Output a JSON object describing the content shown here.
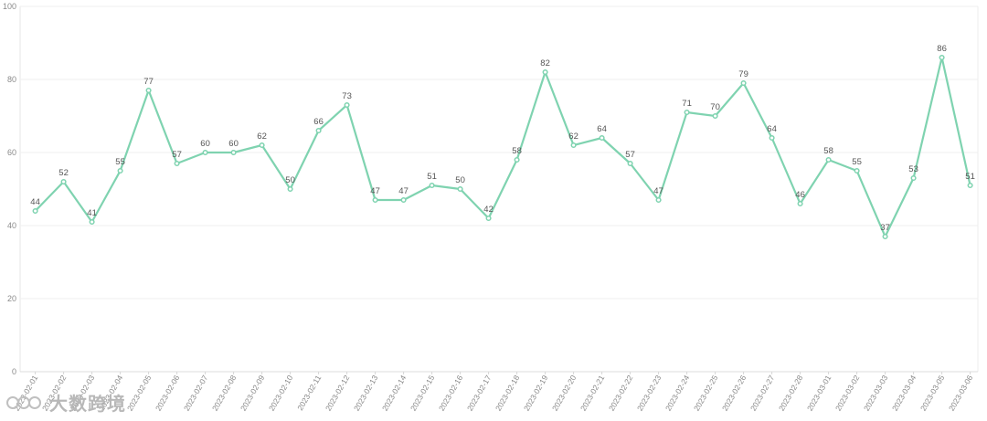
{
  "chart_data": {
    "type": "line",
    "title": "",
    "xlabel": "",
    "ylabel": "",
    "ylim": [
      0,
      100
    ],
    "yticks": [
      0,
      20,
      40,
      60,
      80,
      100
    ],
    "grid": true,
    "line_color": "#7fd3b0",
    "categories": [
      "2023-02-01",
      "2023-02-02",
      "2023-02-03",
      "2023-02-04",
      "2023-02-05",
      "2023-02-06",
      "2023-02-07",
      "2023-02-08",
      "2023-02-09",
      "2023-02-10",
      "2023-02-11",
      "2023-02-12",
      "2023-02-13",
      "2023-02-14",
      "2023-02-15",
      "2023-02-16",
      "2023-02-17",
      "2023-02-18",
      "2023-02-19",
      "2023-02-20",
      "2023-02-21",
      "2023-02-22",
      "2023-02-23",
      "2023-02-24",
      "2023-02-25",
      "2023-02-26",
      "2023-02-27",
      "2023-02-28",
      "2023-03-01",
      "2023-03-02",
      "2023-03-03",
      "2023-03-04",
      "2023-03-05",
      "2023-03-06"
    ],
    "values": [
      44,
      52,
      41,
      55,
      77,
      57,
      60,
      60,
      62,
      50,
      66,
      73,
      47,
      47,
      51,
      50,
      42,
      58,
      82,
      62,
      64,
      57,
      47,
      71,
      70,
      79,
      64,
      46,
      58,
      55,
      37,
      53,
      86,
      51
    ]
  },
  "watermark": {
    "text": "大数跨境",
    "icon": "logo-icon"
  }
}
